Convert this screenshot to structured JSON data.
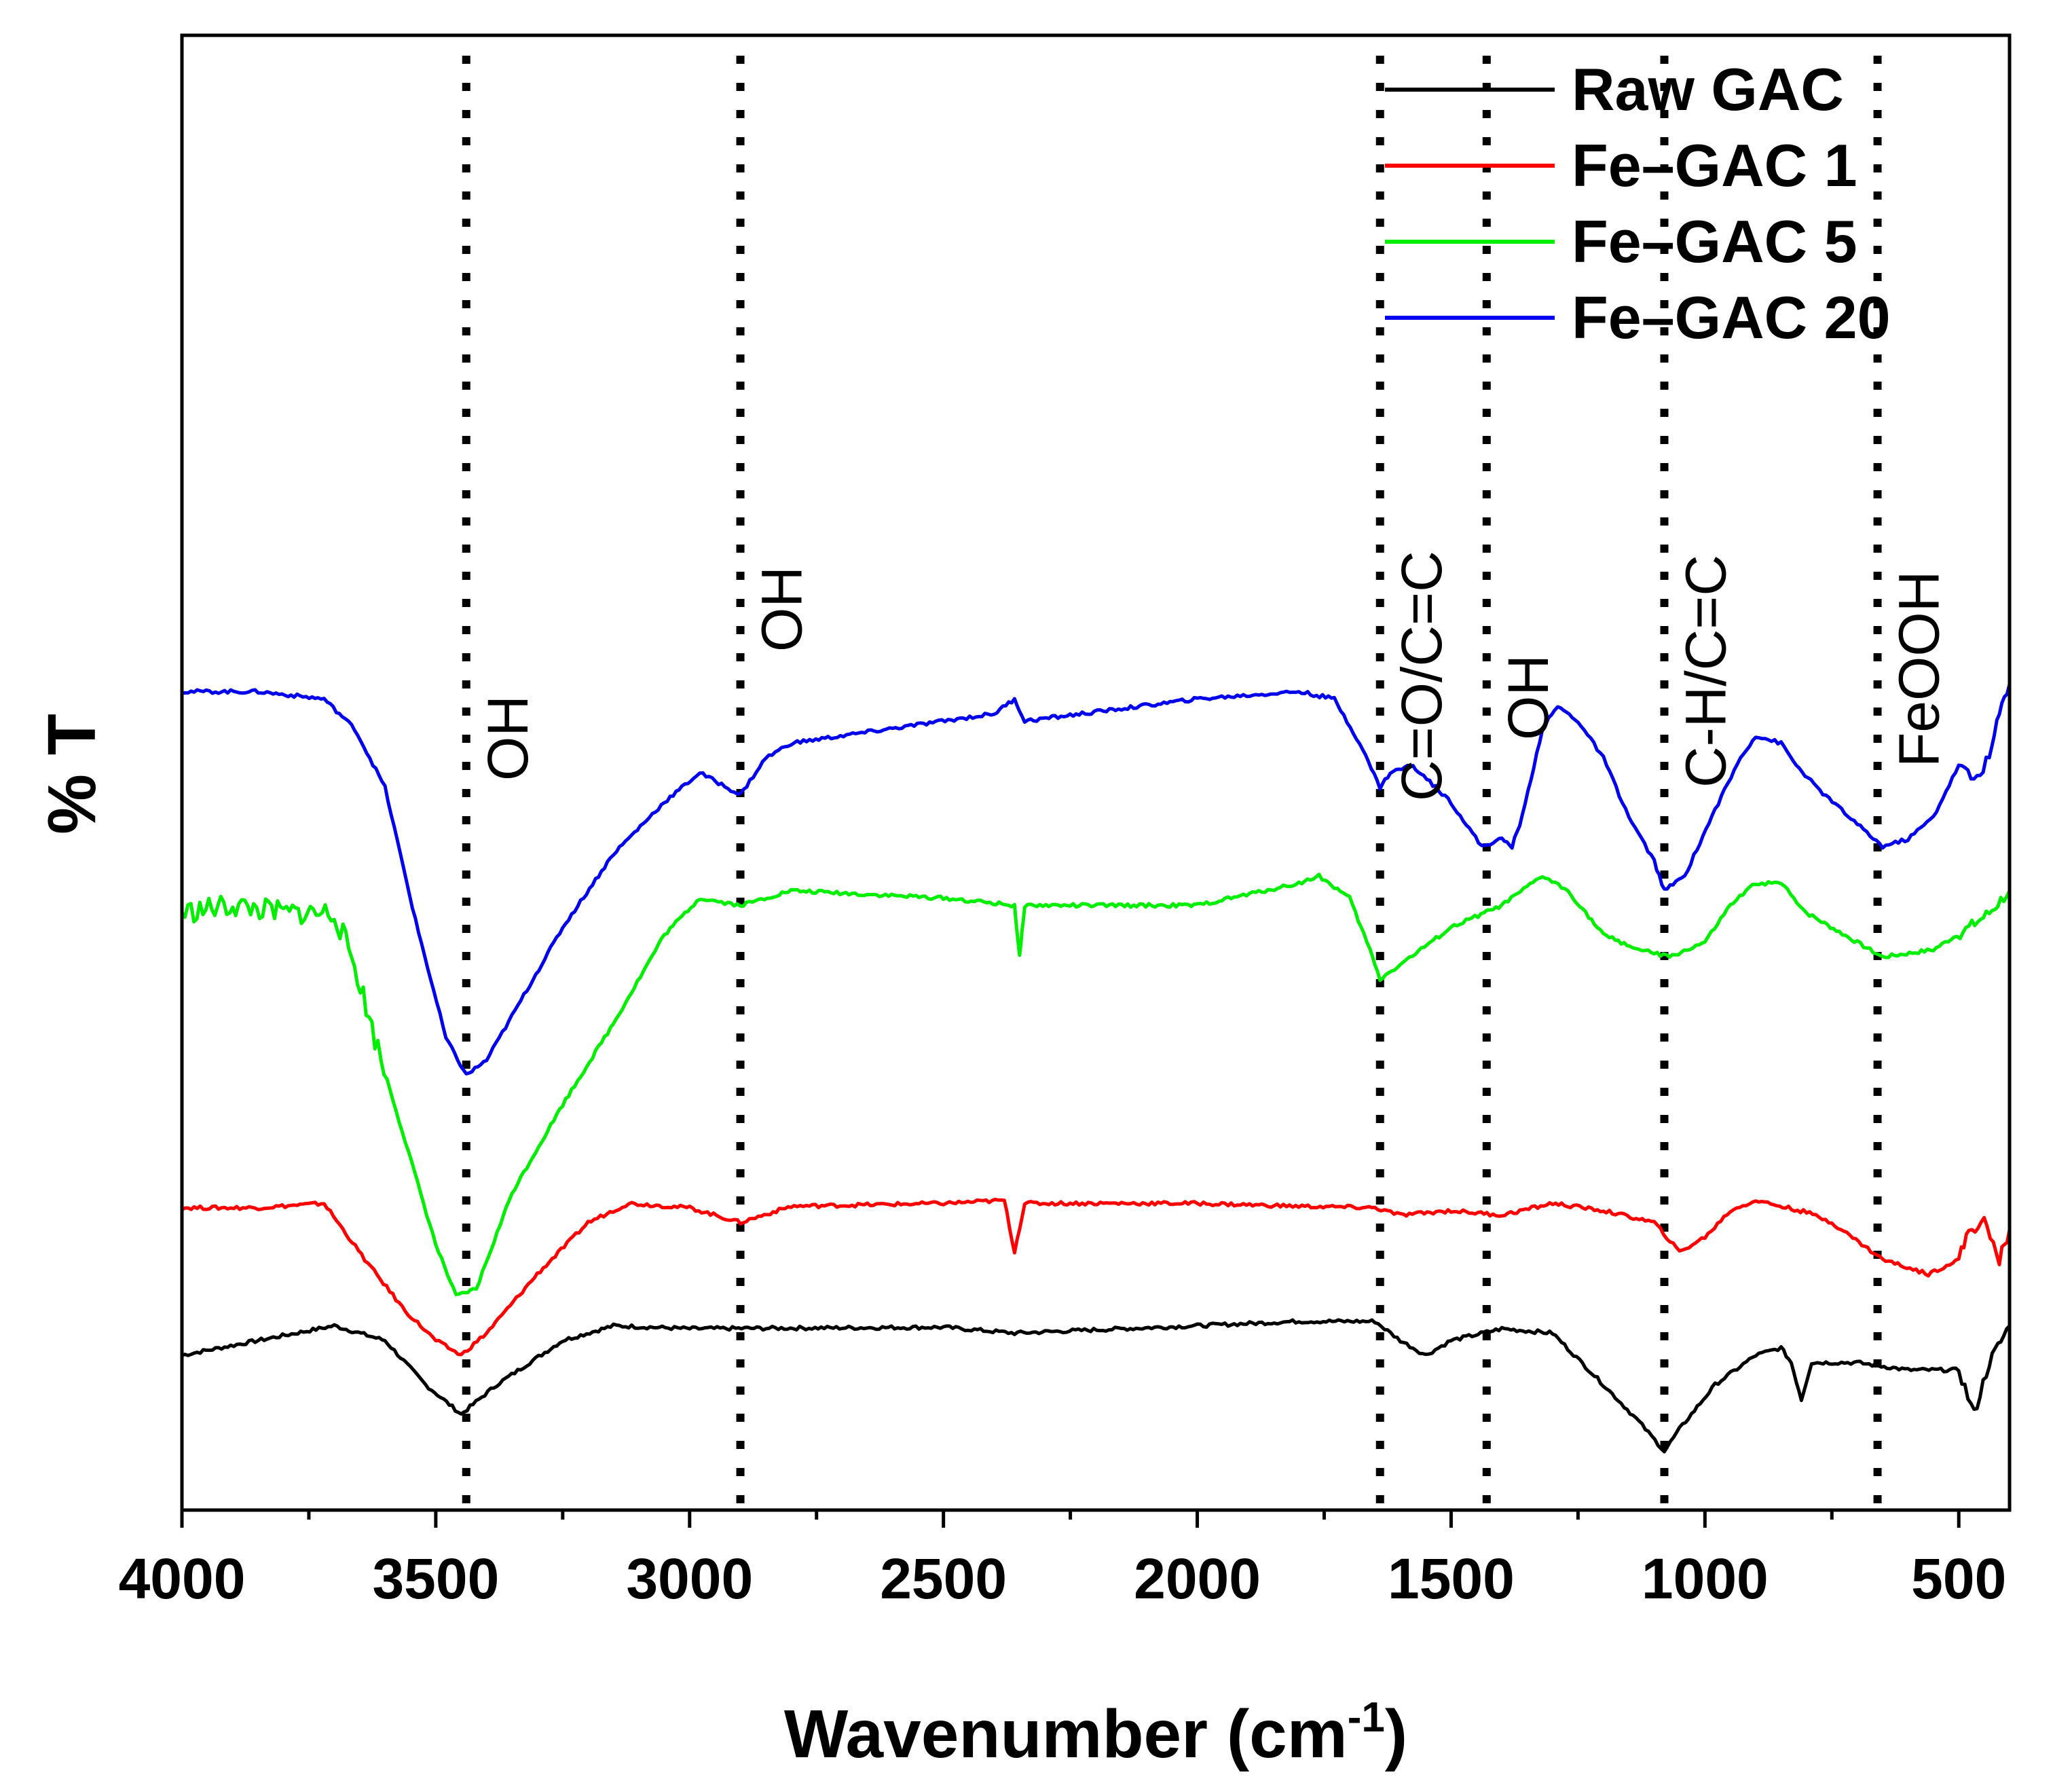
{
  "chart_data": {
    "type": "line",
    "title": "",
    "xlabel": "Wavenumber (cm",
    "xlabel_sup": "-1",
    "xlabel_close": ")",
    "ylabel": "% T",
    "xlim": [
      4000,
      400
    ],
    "x_reversed": true,
    "xticks": [
      4000,
      3500,
      3000,
      2500,
      2000,
      1500,
      1000,
      500
    ],
    "xtick_labels": [
      "4000",
      "3500",
      "3000",
      "2500",
      "2000",
      "1500",
      "1000",
      "500"
    ],
    "ylim": [
      0,
      100
    ],
    "y_ticks_shown": false,
    "grid": false,
    "legend_position": "top-right",
    "series": [
      {
        "name": "Raw GAC",
        "color": "#000000",
        "points": [
          [
            4000,
            10.5
          ],
          [
            3850,
            11.5
          ],
          [
            3700,
            12.5
          ],
          [
            3600,
            11.5
          ],
          [
            3520,
            8.5
          ],
          [
            3450,
            6.5
          ],
          [
            3380,
            8.5
          ],
          [
            3250,
            11.5
          ],
          [
            3150,
            12.5
          ],
          [
            3000,
            12.3
          ],
          [
            2500,
            12.4
          ],
          [
            2360,
            12.0
          ],
          [
            2000,
            12.5
          ],
          [
            1800,
            12.8
          ],
          [
            1650,
            12.8
          ],
          [
            1600,
            11.5
          ],
          [
            1550,
            10.5
          ],
          [
            1500,
            11.5
          ],
          [
            1400,
            12.3
          ],
          [
            1300,
            12.0
          ],
          [
            1200,
            8.5
          ],
          [
            1130,
            6.0
          ],
          [
            1080,
            4.0
          ],
          [
            1050,
            5.5
          ],
          [
            980,
            8.5
          ],
          [
            900,
            10.5
          ],
          [
            850,
            11.0
          ],
          [
            830,
            10.0
          ],
          [
            810,
            7.5
          ],
          [
            790,
            10.0
          ],
          [
            750,
            10.0
          ],
          [
            700,
            10.0
          ],
          [
            600,
            9.5
          ],
          [
            500,
            9.5
          ],
          [
            470,
            6.5
          ],
          [
            440,
            10.0
          ],
          [
            400,
            12.5
          ]
        ]
      },
      {
        "name": "Fe–GAC 1",
        "color": "#ff0000",
        "points": [
          [
            4000,
            20.5
          ],
          [
            3850,
            20.5
          ],
          [
            3720,
            20.8
          ],
          [
            3640,
            17.0
          ],
          [
            3560,
            13.5
          ],
          [
            3500,
            11.5
          ],
          [
            3450,
            10.5
          ],
          [
            3400,
            12.0
          ],
          [
            3300,
            16.0
          ],
          [
            3200,
            19.5
          ],
          [
            3120,
            20.8
          ],
          [
            3000,
            20.5
          ],
          [
            2900,
            19.5
          ],
          [
            2800,
            20.6
          ],
          [
            2500,
            20.8
          ],
          [
            2380,
            21.0
          ],
          [
            2360,
            17.5
          ],
          [
            2340,
            20.8
          ],
          [
            2000,
            20.8
          ],
          [
            1800,
            20.6
          ],
          [
            1650,
            20.5
          ],
          [
            1600,
            20.0
          ],
          [
            1500,
            20.3
          ],
          [
            1400,
            20.0
          ],
          [
            1300,
            20.8
          ],
          [
            1200,
            20.3
          ],
          [
            1100,
            19.5
          ],
          [
            1050,
            17.5
          ],
          [
            1000,
            18.5
          ],
          [
            950,
            20.3
          ],
          [
            900,
            21.0
          ],
          [
            800,
            20.2
          ],
          [
            750,
            19.5
          ],
          [
            650,
            17.0
          ],
          [
            560,
            16.0
          ],
          [
            500,
            17.0
          ],
          [
            480,
            19.0
          ],
          [
            450,
            19.5
          ],
          [
            420,
            17.0
          ],
          [
            400,
            19.0
          ]
        ]
      },
      {
        "name": "Fe–GAC 5",
        "color": "#00ee00",
        "points": [
          [
            4000,
            40.5
          ],
          [
            3900,
            41.0
          ],
          [
            3800,
            40.5
          ],
          [
            3700,
            40.5
          ],
          [
            3660,
            37.0
          ],
          [
            3620,
            32.0
          ],
          [
            3560,
            25.0
          ],
          [
            3500,
            18.0
          ],
          [
            3460,
            14.5
          ],
          [
            3420,
            15.0
          ],
          [
            3350,
            21.5
          ],
          [
            3250,
            27.5
          ],
          [
            3150,
            33.0
          ],
          [
            3050,
            39.0
          ],
          [
            2980,
            41.5
          ],
          [
            2900,
            41.0
          ],
          [
            2800,
            42.0
          ],
          [
            2500,
            41.5
          ],
          [
            2360,
            41.0
          ],
          [
            2350,
            37.5
          ],
          [
            2340,
            41.0
          ],
          [
            2000,
            41.0
          ],
          [
            1800,
            42.5
          ],
          [
            1760,
            43.0
          ],
          [
            1700,
            41.5
          ],
          [
            1660,
            38.0
          ],
          [
            1640,
            36.0
          ],
          [
            1600,
            37.0
          ],
          [
            1500,
            39.5
          ],
          [
            1400,
            41.0
          ],
          [
            1320,
            43.0
          ],
          [
            1270,
            42.0
          ],
          [
            1200,
            39.0
          ],
          [
            1130,
            38.0
          ],
          [
            1070,
            37.5
          ],
          [
            1000,
            38.5
          ],
          [
            950,
            41.0
          ],
          [
            900,
            42.5
          ],
          [
            850,
            42.5
          ],
          [
            800,
            40.5
          ],
          [
            700,
            38.5
          ],
          [
            650,
            37.5
          ],
          [
            550,
            38.0
          ],
          [
            480,
            39.5
          ],
          [
            440,
            40.5
          ],
          [
            400,
            42.0
          ]
        ]
      },
      {
        "name": "Fe–GAC 20",
        "color": "#0000ee",
        "points": [
          [
            4000,
            55.5
          ],
          [
            3850,
            55.5
          ],
          [
            3720,
            55.0
          ],
          [
            3660,
            53.0
          ],
          [
            3600,
            49.0
          ],
          [
            3540,
            40.0
          ],
          [
            3480,
            32.0
          ],
          [
            3440,
            29.5
          ],
          [
            3400,
            30.5
          ],
          [
            3350,
            33.5
          ],
          [
            3250,
            39.5
          ],
          [
            3150,
            44.5
          ],
          [
            3050,
            48.0
          ],
          [
            2980,
            50.0
          ],
          [
            2900,
            48.5
          ],
          [
            2850,
            51.0
          ],
          [
            2800,
            52.0
          ],
          [
            2600,
            53.0
          ],
          [
            2400,
            54.0
          ],
          [
            2360,
            55.0
          ],
          [
            2340,
            53.5
          ],
          [
            2000,
            55.0
          ],
          [
            1800,
            55.5
          ],
          [
            1730,
            55.0
          ],
          [
            1680,
            52.0
          ],
          [
            1640,
            49.0
          ],
          [
            1620,
            50.0
          ],
          [
            1580,
            50.5
          ],
          [
            1560,
            50.0
          ],
          [
            1500,
            48.0
          ],
          [
            1440,
            45.0
          ],
          [
            1400,
            45.5
          ],
          [
            1380,
            45.0
          ],
          [
            1360,
            47.0
          ],
          [
            1320,
            53.0
          ],
          [
            1290,
            54.5
          ],
          [
            1250,
            53.5
          ],
          [
            1200,
            51.0
          ],
          [
            1150,
            47.0
          ],
          [
            1100,
            44.0
          ],
          [
            1080,
            42.0
          ],
          [
            1040,
            43.0
          ],
          [
            980,
            47.5
          ],
          [
            930,
            51.0
          ],
          [
            900,
            52.5
          ],
          [
            850,
            52.0
          ],
          [
            820,
            50.5
          ],
          [
            780,
            49.0
          ],
          [
            700,
            46.5
          ],
          [
            650,
            45.0
          ],
          [
            600,
            45.5
          ],
          [
            550,
            47.0
          ],
          [
            500,
            50.5
          ],
          [
            470,
            49.5
          ],
          [
            440,
            51.0
          ],
          [
            420,
            54.0
          ],
          [
            400,
            56.0
          ]
        ]
      }
    ],
    "reference_lines": [
      {
        "x": 3440,
        "label": "OH"
      },
      {
        "x": 2900,
        "label": "OH"
      },
      {
        "x": 1640,
        "label": "C=O/C=C"
      },
      {
        "x": 1430,
        "label": "OH"
      },
      {
        "x": 1080,
        "label": "C-H/C=C"
      },
      {
        "x": 660,
        "label": "FeOOH"
      }
    ]
  }
}
